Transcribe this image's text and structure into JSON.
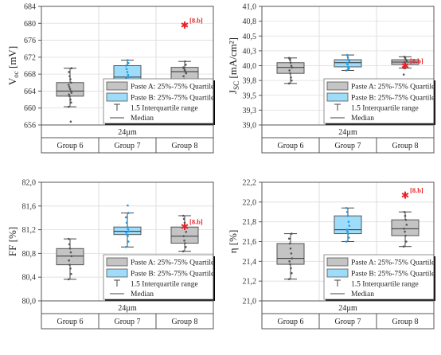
{
  "colors": {
    "paste_a": "#c4c4c4",
    "paste_b": "#9fdcf9",
    "points_a": "#555555",
    "points_b": "#1a9be6",
    "reference": "#e8222a",
    "grid": "#dddddd",
    "frame": "#555555"
  },
  "legend": {
    "paste_a": "Paste A: 25%-75% Quartile",
    "paste_b": "Paste B: 25%-75% Quartile",
    "range": "1.5 Interquartile range",
    "median": "Median"
  },
  "chart_data": [
    {
      "type": "box",
      "ylabel_main": "V",
      "ylabel_sub": "oc",
      "ylabel_unit": " [mV]",
      "ylim": [
        656,
        684
      ],
      "yticks": [
        "656",
        "660",
        "664",
        "668",
        "672",
        "676",
        "680",
        "684"
      ],
      "sublabel": "24µm",
      "categories": [
        "Group 6",
        "Group 7",
        "Group 8"
      ],
      "boxes": [
        {
          "group": "Group 6",
          "paste": "A",
          "q1": 662.8,
          "median": 664.0,
          "q3": 666.0,
          "whisker_low": 660.3,
          "whisker_high": 669.4,
          "points": [
            660.3,
            661.3,
            662.0,
            662.8,
            663.2,
            663.6,
            664.0,
            664.5,
            665.0,
            665.5,
            666.0,
            666.8,
            667.5,
            668.5,
            669.4,
            656.8
          ]
        },
        {
          "group": "Group 7",
          "paste": "B",
          "q1": 665.8,
          "median": 667.3,
          "q3": 670.0,
          "whisker_low": 664.3,
          "whisker_high": 671.3,
          "points": [
            664.3,
            665.0,
            665.8,
            666.5,
            667.0,
            667.3,
            667.8,
            668.5,
            669.2,
            670.0,
            670.6,
            671.3
          ]
        },
        {
          "group": "Group 8",
          "paste": "A",
          "q1": 666.8,
          "median": 668.6,
          "q3": 669.6,
          "whisker_low": 664.2,
          "whisker_high": 671.0,
          "points": [
            664.2,
            665.3,
            666.0,
            666.8,
            667.5,
            668.2,
            668.6,
            669.0,
            669.4,
            669.6,
            670.2,
            671.0
          ]
        }
      ],
      "reference": {
        "group": "Group 8",
        "value": 679.6,
        "label": "[8.b]"
      }
    },
    {
      "type": "box",
      "ylabel_main": "J",
      "ylabel_sub": "SC",
      "ylabel_unit": " [mA/cm²]",
      "ylim": [
        39.0,
        41.0
      ],
      "yticks": [
        "39,0",
        "39,3",
        "39,5",
        "39,8",
        "40,0",
        "40,3",
        "40,5",
        "40,8",
        "41,0"
      ],
      "sublabel": "24µm",
      "categories": [
        "Group 6",
        "Group 7",
        "Group 8"
      ],
      "boxes": [
        {
          "group": "Group 6",
          "paste": "A",
          "q1": 39.87,
          "median": 39.97,
          "q3": 40.05,
          "whisker_low": 39.7,
          "whisker_high": 40.13,
          "points": [
            39.7,
            39.75,
            39.8,
            39.87,
            39.92,
            39.97,
            40.0,
            40.05,
            40.1,
            40.13
          ]
        },
        {
          "group": "Group 7",
          "paste": "B",
          "q1": 39.98,
          "median": 40.05,
          "q3": 40.1,
          "whisker_low": 39.92,
          "whisker_high": 40.18,
          "points": [
            39.92,
            39.95,
            39.98,
            40.02,
            40.05,
            40.08,
            40.1,
            40.14,
            40.18
          ]
        },
        {
          "group": "Group 8",
          "paste": "A",
          "q1": 40.02,
          "median": 40.06,
          "q3": 40.1,
          "whisker_low": 39.96,
          "whisker_high": 40.15,
          "points": [
            39.96,
            40.0,
            40.02,
            40.05,
            40.06,
            40.08,
            40.1,
            40.13,
            40.15,
            39.85
          ]
        }
      ],
      "reference": {
        "group": "Group 8",
        "value": 40.0,
        "label": "[8.b]"
      }
    },
    {
      "type": "box",
      "ylabel_main": "FF",
      "ylabel_sub": "",
      "ylabel_unit": " [%]",
      "ylim": [
        80.0,
        82.2
      ],
      "yticks": [
        "80,0",
        "80,4",
        "80,8",
        "81,2",
        "81,6",
        "82,0"
      ],
      "sublabel": "24µm",
      "categories": [
        "Group 6",
        "Group 7",
        "Group 8"
      ],
      "boxes": [
        {
          "group": "Group 6",
          "paste": "A",
          "q1": 80.67,
          "median": 80.83,
          "q3": 80.97,
          "whisker_low": 80.4,
          "whisker_high": 81.15,
          "points": [
            80.4,
            80.5,
            80.6,
            80.67,
            80.75,
            80.83,
            80.9,
            80.97,
            81.05,
            81.15
          ]
        },
        {
          "group": "Group 7",
          "paste": "B",
          "q1": 81.23,
          "median": 81.29,
          "q3": 81.37,
          "whisker_low": 81.0,
          "whisker_high": 81.63,
          "points": [
            81.0,
            81.1,
            81.2,
            81.23,
            81.27,
            81.29,
            81.33,
            81.37,
            81.45,
            81.55,
            81.63,
            81.77
          ]
        },
        {
          "group": "Group 8",
          "paste": "A",
          "q1": 81.07,
          "median": 81.2,
          "q3": 81.37,
          "whisker_low": 80.92,
          "whisker_high": 81.58,
          "points": [
            80.92,
            81.0,
            81.07,
            81.12,
            81.2,
            81.28,
            81.37,
            81.45,
            81.52,
            81.58
          ]
        }
      ],
      "reference": {
        "group": "Group 8",
        "value": 81.38,
        "label": "[8.b]"
      }
    },
    {
      "type": "box",
      "ylabel_main": "η",
      "ylabel_sub": "",
      "ylabel_unit": " [%]",
      "ylim": [
        21.0,
        22.2
      ],
      "yticks": [
        "21,0",
        "21,2",
        "21,4",
        "21,6",
        "21,8",
        "22,0",
        "22,2"
      ],
      "sublabel": "24µm",
      "categories": [
        "Group 6",
        "Group 7",
        "Group 8"
      ],
      "boxes": [
        {
          "group": "Group 6",
          "paste": "A",
          "q1": 21.37,
          "median": 21.43,
          "q3": 21.58,
          "whisker_low": 21.22,
          "whisker_high": 21.68,
          "points": [
            21.22,
            21.28,
            21.33,
            21.37,
            21.4,
            21.43,
            21.48,
            21.53,
            21.58,
            21.63,
            21.68
          ]
        },
        {
          "group": "Group 7",
          "paste": "B",
          "q1": 21.68,
          "median": 21.72,
          "q3": 21.86,
          "whisker_low": 21.6,
          "whisker_high": 21.94,
          "points": [
            21.6,
            21.64,
            21.68,
            21.7,
            21.72,
            21.76,
            21.8,
            21.86,
            21.9,
            21.94
          ]
        },
        {
          "group": "Group 8",
          "paste": "A",
          "q1": 21.66,
          "median": 21.73,
          "q3": 21.82,
          "whisker_low": 21.55,
          "whisker_high": 21.9,
          "points": [
            21.55,
            21.6,
            21.66,
            21.7,
            21.73,
            21.77,
            21.82,
            21.86,
            21.9
          ]
        }
      ],
      "reference": {
        "group": "Group 8",
        "value": 22.07,
        "label": "[8.b]"
      }
    }
  ]
}
